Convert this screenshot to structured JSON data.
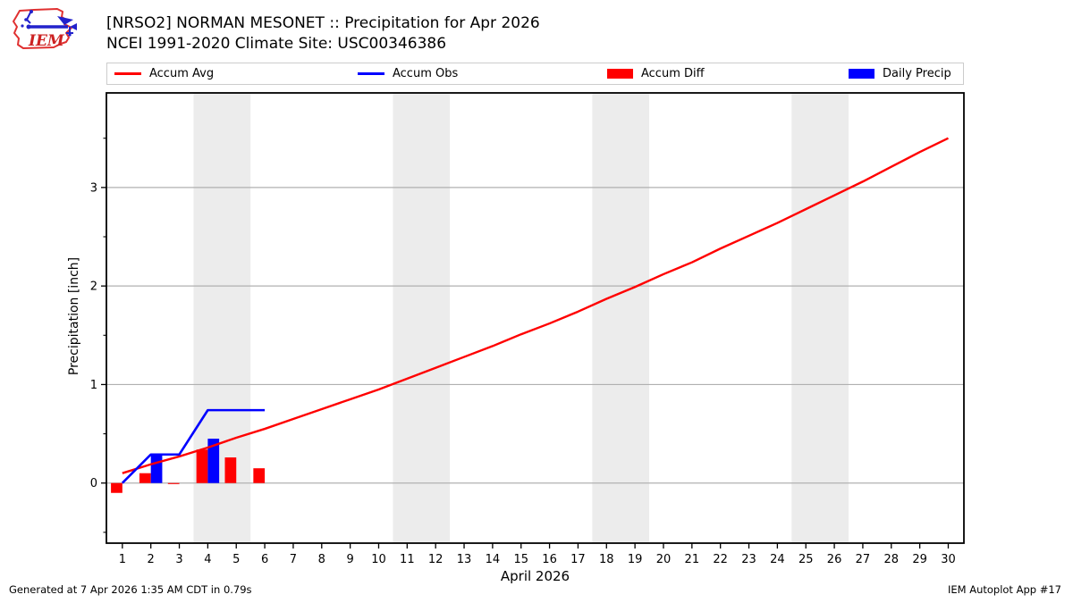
{
  "header": {
    "title_line1": "[NRSO2] NORMAN MESONET :: Precipitation for Apr 2026",
    "title_line2": "NCEI 1991-2020 Climate Site: USC00346386",
    "logo_text": "IEM"
  },
  "legend": {
    "items": [
      {
        "label": "Accum Avg",
        "type": "line",
        "color": "#ff0000"
      },
      {
        "label": "Accum Obs",
        "type": "line",
        "color": "#0000ff"
      },
      {
        "label": "Accum Diff",
        "type": "patch",
        "color": "#ff0000"
      },
      {
        "label": "Daily Precip",
        "type": "patch",
        "color": "#0000ff"
      }
    ]
  },
  "footer": {
    "left": "Generated at 7 Apr 2026 1:35 AM CDT in 0.79s",
    "right": "IEM Autoplot App #17"
  },
  "chart_data": {
    "type": "line+bar",
    "title": "[NRSO2] NORMAN MESONET :: Precipitation for Apr 2026",
    "subtitle": "NCEI 1991-2020 Climate Site: USC00346386",
    "xlabel": "April 2026",
    "ylabel": "Precipitation [inch]",
    "xlim": [
      0.44,
      30.55
    ],
    "ylim": [
      -0.61,
      3.96
    ],
    "x_ticks": [
      1,
      2,
      3,
      4,
      5,
      6,
      7,
      8,
      9,
      10,
      11,
      12,
      13,
      14,
      15,
      16,
      17,
      18,
      19,
      20,
      21,
      22,
      23,
      24,
      25,
      26,
      27,
      28,
      29,
      30
    ],
    "y_ticks": [
      0,
      1,
      2,
      3
    ],
    "y_minor_ticks": [
      -0.5,
      0.5,
      1.5,
      2.5,
      3.5
    ],
    "grid": "horizontal",
    "grid_color": "#b0b0b0",
    "weekend_bands": [
      [
        3.5,
        5.5
      ],
      [
        10.5,
        12.5
      ],
      [
        17.5,
        19.5
      ],
      [
        24.5,
        26.5
      ]
    ],
    "band_color": "#ececec",
    "legend_position": "top, expanded above axes",
    "series": [
      {
        "name": "Accum Diff",
        "type": "bar",
        "color": "#ff0000",
        "bar_align": "left-of-day",
        "bar_width_days": 0.4,
        "x": [
          1,
          2,
          3,
          4,
          5,
          6
        ],
        "y": [
          -0.1,
          0.1,
          -0.01,
          0.34,
          0.26,
          0.15
        ]
      },
      {
        "name": "Daily Precip",
        "type": "bar",
        "color": "#0000ff",
        "bar_align": "right-of-day",
        "bar_width_days": 0.4,
        "x": [
          2,
          4
        ],
        "y": [
          0.29,
          0.45
        ]
      },
      {
        "name": "Accum Avg",
        "type": "line",
        "color": "#ff0000",
        "line_width": 2.4,
        "x": [
          1,
          2,
          3,
          4,
          5,
          6,
          7,
          8,
          9,
          10,
          11,
          12,
          13,
          14,
          15,
          16,
          17,
          18,
          19,
          20,
          21,
          22,
          23,
          24,
          25,
          26,
          27,
          28,
          29,
          30
        ],
        "y": [
          0.1,
          0.19,
          0.27,
          0.36,
          0.46,
          0.55,
          0.65,
          0.75,
          0.85,
          0.95,
          1.06,
          1.17,
          1.28,
          1.39,
          1.51,
          1.62,
          1.74,
          1.87,
          1.99,
          2.12,
          2.24,
          2.38,
          2.51,
          2.64,
          2.78,
          2.92,
          3.06,
          3.21,
          3.36,
          3.5
        ]
      },
      {
        "name": "Accum Obs",
        "type": "line",
        "color": "#0000ff",
        "line_width": 2.6,
        "x": [
          1,
          2,
          3,
          4,
          5,
          6
        ],
        "y": [
          0.0,
          0.29,
          0.29,
          0.74,
          0.74,
          0.74
        ]
      }
    ]
  }
}
